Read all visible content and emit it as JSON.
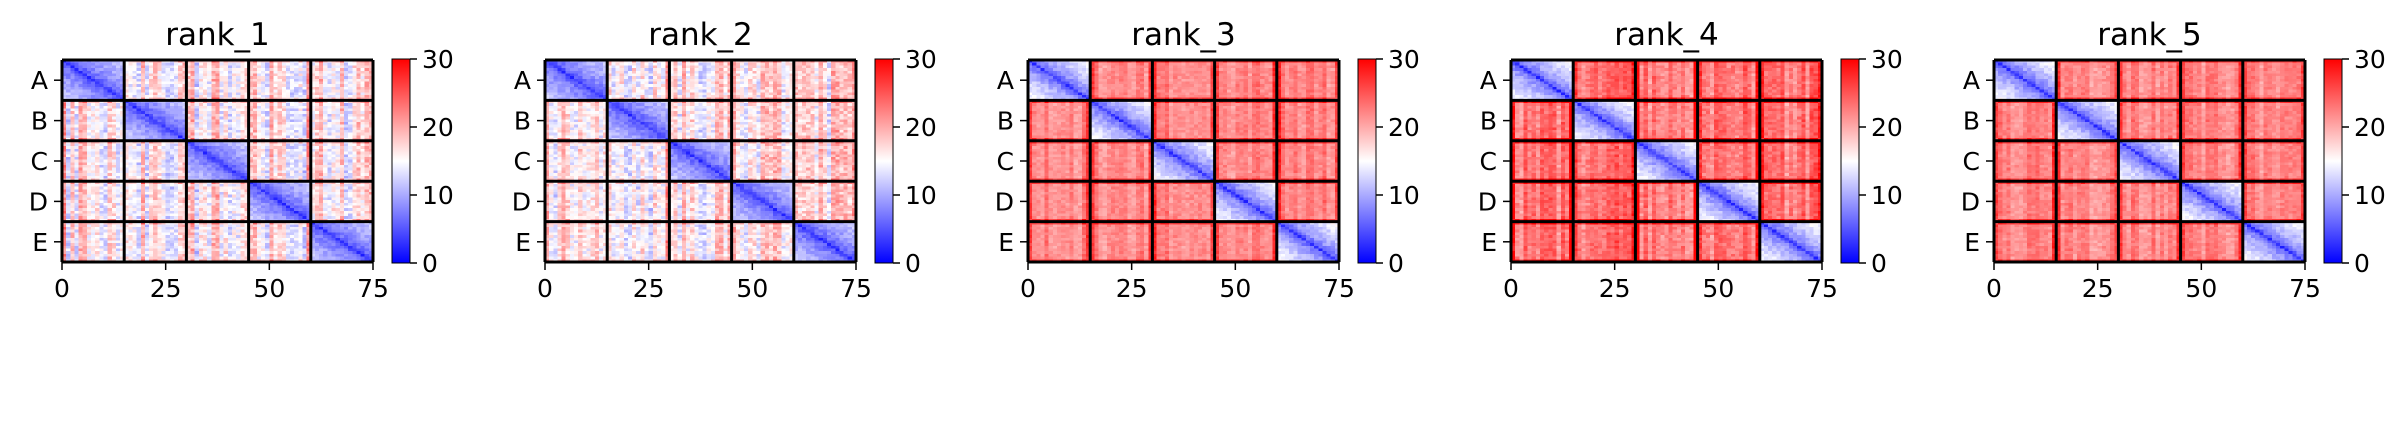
{
  "chart_data": [
    {
      "type": "heatmap",
      "title": "rank_1",
      "profile": 1
    },
    {
      "type": "heatmap",
      "title": "rank_2",
      "profile": 1
    },
    {
      "type": "heatmap",
      "title": "rank_3",
      "profile": 2
    },
    {
      "type": "heatmap",
      "title": "rank_4",
      "profile": 3
    },
    {
      "type": "heatmap",
      "title": "rank_5",
      "profile": 2
    }
  ],
  "shared": {
    "n": 75,
    "block_size": 15,
    "block_labels": [
      "A",
      "B",
      "C",
      "D",
      "E"
    ],
    "x_ticks": [
      0,
      25,
      50,
      75
    ],
    "color_range": [
      0,
      30
    ],
    "colorbar_ticks": [
      0,
      10,
      20,
      30
    ],
    "colormap": "bwr",
    "colors": {
      "low": "#0000ff",
      "mid": "#ffffff",
      "high": "#ff0000",
      "block_border": "#000000"
    }
  },
  "profiles": {
    "1": {
      "within_base": 3,
      "within_slope": 9,
      "between_mean": 16,
      "between_spread": 5,
      "off_within_mean": 20,
      "edge_boost": 3
    },
    "2": {
      "within_base": 3,
      "within_slope": 12,
      "between_mean": 22,
      "between_spread": 2,
      "off_within_mean": 23,
      "edge_boost": 5
    },
    "3": {
      "within_base": 3,
      "within_slope": 12,
      "between_mean": 23,
      "between_spread": 3,
      "off_within_mean": 25,
      "edge_boost": 6
    }
  }
}
